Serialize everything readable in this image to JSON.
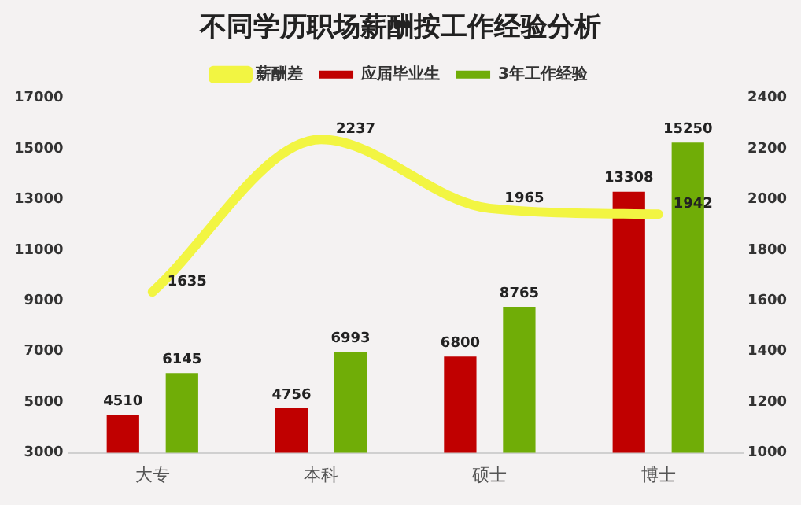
{
  "chart_data": {
    "type": "bar",
    "title": "不同学历职场薪酬按工作经验分析",
    "categories": [
      "大专",
      "本科",
      "硕士",
      "博士"
    ],
    "series": [
      {
        "name": "应届毕业生",
        "color": "#c00000",
        "values": [
          4510,
          4756,
          6800,
          13308
        ]
      },
      {
        "name": "3年工作经验",
        "color": "#70ad07",
        "values": [
          6145,
          6993,
          8765,
          15250
        ]
      },
      {
        "name": "薪酬差",
        "type": "line",
        "axis": "y2",
        "color": "#f2f542",
        "values": [
          1635,
          2237,
          1965,
          1942
        ]
      }
    ],
    "ylim": [
      3000,
      17000
    ],
    "yticks": [
      3000,
      5000,
      7000,
      9000,
      11000,
      13000,
      15000,
      17000
    ],
    "y2lim": [
      1000,
      2400
    ],
    "y2ticks": [
      1000,
      1200,
      1400,
      1600,
      1800,
      2000,
      2200,
      2400
    ],
    "data_labels": true,
    "legend": "top",
    "grid": false,
    "marker": "none"
  }
}
